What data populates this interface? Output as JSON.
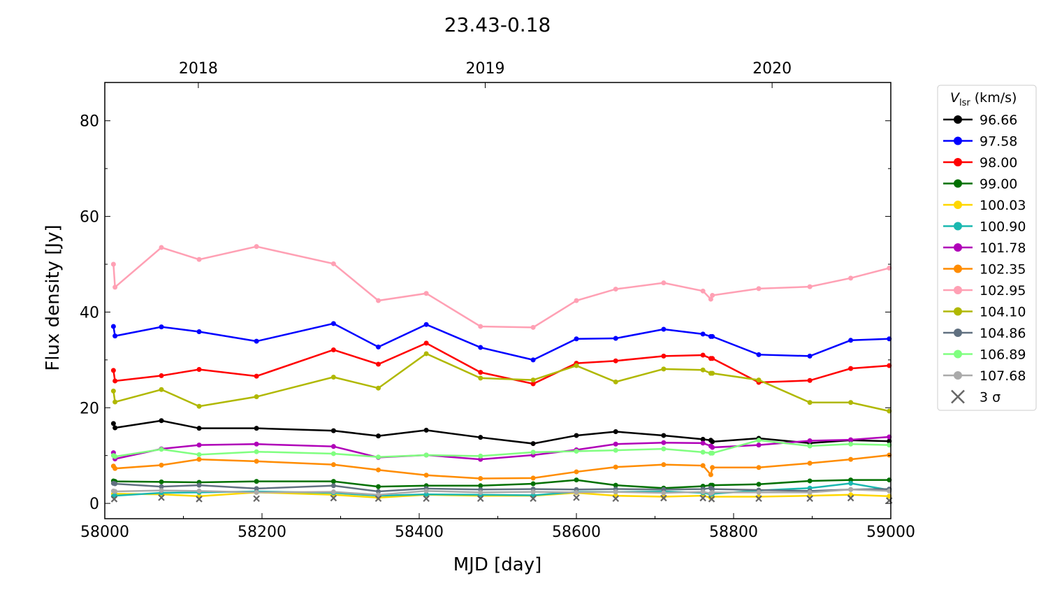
{
  "chart_data": {
    "type": "line",
    "title": "23.43-0.18",
    "xlabel": "MJD [day]",
    "ylabel": "Flux density [Jy]",
    "xlim": [
      58000,
      59000
    ],
    "ylim": [
      -3.2,
      88
    ],
    "xticks": [
      "58000",
      "58200",
      "58400",
      "58600",
      "58800",
      "59000"
    ],
    "yticks": [
      "0",
      "20",
      "40",
      "60",
      "80"
    ],
    "top_axis": [
      {
        "label": "2018",
        "mjd": 58119
      },
      {
        "label": "2019",
        "mjd": 58484
      },
      {
        "label": "2020",
        "mjd": 58849
      }
    ],
    "legend_title": "V",
    "legend_title_sub": "lsr",
    "legend_title_unit": " (km/s)",
    "legend_position": "outside-right",
    "x": [
      58011,
      58013,
      58072,
      58120,
      58193,
      58291,
      58348,
      58409,
      58478,
      58545,
      58600,
      58650,
      58711,
      58761,
      58771,
      58773,
      58832,
      58897,
      58949,
      58998
    ],
    "series": [
      {
        "name": "96.66",
        "color": "#000000",
        "values": [
          16.7,
          15.8,
          17.3,
          15.7,
          15.7,
          15.2,
          14.1,
          15.3,
          13.8,
          12.5,
          14.2,
          15.0,
          14.2,
          13.4,
          13.2,
          12.9,
          13.6,
          12.6,
          13.2,
          13.0
        ]
      },
      {
        "name": "97.58",
        "color": "#0000ff",
        "values": [
          37.0,
          35.0,
          36.9,
          35.9,
          33.9,
          37.6,
          32.7,
          37.4,
          32.6,
          30.0,
          34.4,
          34.5,
          36.4,
          35.4,
          34.9,
          34.9,
          31.1,
          30.8,
          34.1,
          34.4
        ]
      },
      {
        "name": "98.00",
        "color": "#ff0000",
        "values": [
          27.8,
          25.6,
          26.7,
          28.0,
          26.6,
          32.1,
          29.1,
          33.5,
          27.4,
          25.0,
          29.3,
          29.8,
          30.8,
          31.0,
          30.3,
          30.3,
          25.3,
          25.7,
          28.2,
          28.8
        ]
      },
      {
        "name": "99.00",
        "color": "#007000",
        "values": [
          4.7,
          4.6,
          4.5,
          4.4,
          4.6,
          4.6,
          3.5,
          3.7,
          3.7,
          4.1,
          4.9,
          3.8,
          3.2,
          3.6,
          3.8,
          3.8,
          4.0,
          4.7,
          4.9,
          4.9
        ]
      },
      {
        "name": "100.03",
        "color": "#ffd700",
        "values": [
          2.0,
          2.0,
          1.9,
          1.5,
          2.3,
          1.8,
          1.2,
          1.8,
          1.6,
          1.6,
          2.2,
          1.6,
          1.4,
          1.6,
          1.2,
          1.4,
          1.4,
          1.6,
          1.8,
          1.5
        ]
      },
      {
        "name": "100.90",
        "color": "#1ab8b0",
        "values": [
          1.5,
          1.6,
          2.2,
          2.3,
          2.5,
          2.2,
          1.6,
          1.9,
          1.8,
          1.7,
          2.4,
          2.4,
          2.5,
          2.2,
          1.9,
          2.0,
          2.7,
          3.2,
          4.2,
          2.8
        ]
      },
      {
        "name": "101.78",
        "color": "#b000b8",
        "values": [
          10.6,
          9.3,
          11.4,
          12.2,
          12.4,
          11.9,
          9.6,
          10.1,
          9.2,
          10.1,
          11.2,
          12.4,
          12.7,
          12.6,
          12.0,
          11.7,
          12.2,
          13.1,
          13.3,
          13.9
        ]
      },
      {
        "name": "102.35",
        "color": "#ff8c00",
        "values": [
          7.8,
          7.3,
          8.0,
          9.2,
          8.8,
          8.1,
          7.0,
          5.9,
          5.2,
          5.3,
          6.6,
          7.6,
          8.1,
          7.9,
          6.0,
          7.5,
          7.5,
          8.4,
          9.2,
          10.1
        ]
      },
      {
        "name": "102.95",
        "color": "#ffa0b4",
        "values": [
          50.0,
          45.2,
          53.5,
          51.0,
          53.7,
          50.1,
          42.4,
          43.9,
          37.0,
          36.8,
          42.4,
          44.8,
          46.1,
          44.4,
          42.7,
          43.5,
          44.9,
          45.3,
          47.1,
          49.2
        ]
      },
      {
        "name": "104.10",
        "color": "#b0b800",
        "values": [
          23.5,
          21.2,
          23.8,
          20.3,
          22.3,
          26.4,
          24.1,
          31.3,
          26.2,
          25.8,
          28.8,
          25.4,
          28.1,
          27.9,
          27.2,
          27.2,
          25.8,
          21.1,
          21.1,
          19.3
        ]
      },
      {
        "name": "104.86",
        "color": "#607080",
        "values": [
          4.2,
          4.1,
          3.5,
          3.8,
          3.1,
          3.7,
          2.5,
          3.1,
          2.9,
          3.0,
          2.9,
          3.0,
          2.9,
          3.0,
          3.2,
          3.0,
          2.8,
          2.6,
          2.9,
          3.0
        ]
      },
      {
        "name": "106.89",
        "color": "#80ff80",
        "values": [
          10.0,
          9.8,
          11.3,
          10.2,
          10.8,
          10.4,
          9.7,
          10.1,
          9.9,
          10.7,
          10.9,
          11.1,
          11.4,
          10.7,
          10.5,
          10.5,
          13.2,
          12.0,
          12.4,
          12.2
        ]
      },
      {
        "name": "107.68",
        "color": "#aaaaaa",
        "values": [
          2.6,
          2.5,
          2.7,
          2.6,
          2.3,
          2.4,
          1.8,
          2.6,
          2.3,
          2.4,
          2.3,
          2.4,
          2.2,
          2.4,
          2.1,
          2.3,
          2.3,
          2.3,
          2.9,
          2.6
        ]
      }
    ],
    "sigma3": {
      "name": "3 σ",
      "color": "#666666",
      "x": [
        58012,
        58072,
        58120,
        58193,
        58291,
        58348,
        58409,
        58478,
        58545,
        58600,
        58650,
        58711,
        58761,
        58772,
        58832,
        58897,
        58949,
        58998
      ],
      "values": [
        0.9,
        1.2,
        0.9,
        1.0,
        1.1,
        1.0,
        1.0,
        1.0,
        1.0,
        1.2,
        1.0,
        1.1,
        1.1,
        0.9,
        1.0,
        1.0,
        1.1,
        0.6
      ]
    }
  }
}
